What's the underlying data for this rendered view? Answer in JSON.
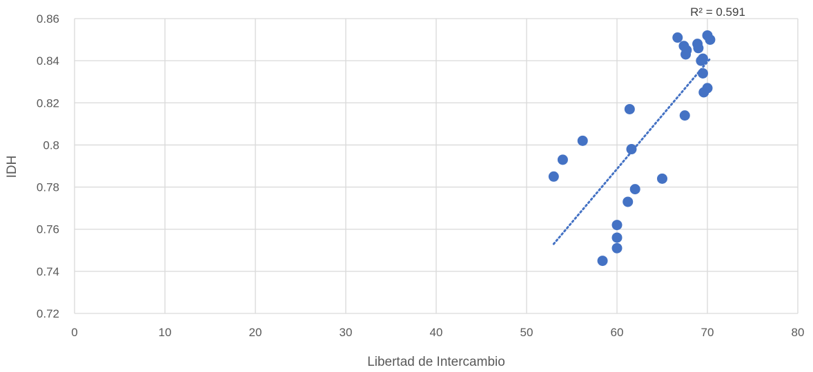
{
  "chart_data": {
    "type": "scatter",
    "title": "",
    "xlabel": "Libertad de Intercambio",
    "ylabel": "IDH",
    "xlim": [
      0,
      80
    ],
    "ylim": [
      0.72,
      0.86
    ],
    "x_ticks": [
      0,
      10,
      20,
      30,
      40,
      50,
      60,
      70,
      80
    ],
    "y_ticks": [
      0.72,
      0.74,
      0.76,
      0.78,
      0.8,
      0.82,
      0.84,
      0.86
    ],
    "x_tick_labels": [
      "0",
      "10",
      "20",
      "30",
      "40",
      "50",
      "60",
      "70",
      "80"
    ],
    "y_tick_labels": [
      "0.72",
      "0.74",
      "0.76",
      "0.78",
      "0.8",
      "0.82",
      "0.84",
      "0.86"
    ],
    "grid": true,
    "legend": "none",
    "marker_color": "#4472C4",
    "trendline_color": "#4472C4",
    "trendline": {
      "type": "linear",
      "x": [
        53,
        70.3
      ],
      "y": [
        0.753,
        0.841
      ],
      "style": "dotted"
    },
    "r_squared_label": "R² = 0.591",
    "points": [
      {
        "x": 53.0,
        "y": 0.785
      },
      {
        "x": 54.0,
        "y": 0.793
      },
      {
        "x": 56.2,
        "y": 0.802
      },
      {
        "x": 58.4,
        "y": 0.745
      },
      {
        "x": 60.0,
        "y": 0.762
      },
      {
        "x": 60.0,
        "y": 0.756
      },
      {
        "x": 60.0,
        "y": 0.751
      },
      {
        "x": 61.2,
        "y": 0.773
      },
      {
        "x": 61.4,
        "y": 0.817
      },
      {
        "x": 61.6,
        "y": 0.798
      },
      {
        "x": 62.0,
        "y": 0.779
      },
      {
        "x": 65.0,
        "y": 0.784
      },
      {
        "x": 66.7,
        "y": 0.851
      },
      {
        "x": 67.4,
        "y": 0.847
      },
      {
        "x": 67.5,
        "y": 0.814
      },
      {
        "x": 67.6,
        "y": 0.843
      },
      {
        "x": 67.7,
        "y": 0.845
      },
      {
        "x": 68.9,
        "y": 0.848
      },
      {
        "x": 69.0,
        "y": 0.846
      },
      {
        "x": 69.3,
        "y": 0.84
      },
      {
        "x": 69.5,
        "y": 0.841
      },
      {
        "x": 69.5,
        "y": 0.834
      },
      {
        "x": 69.6,
        "y": 0.825
      },
      {
        "x": 70.0,
        "y": 0.827
      },
      {
        "x": 70.0,
        "y": 0.852
      },
      {
        "x": 70.3,
        "y": 0.85
      }
    ]
  }
}
